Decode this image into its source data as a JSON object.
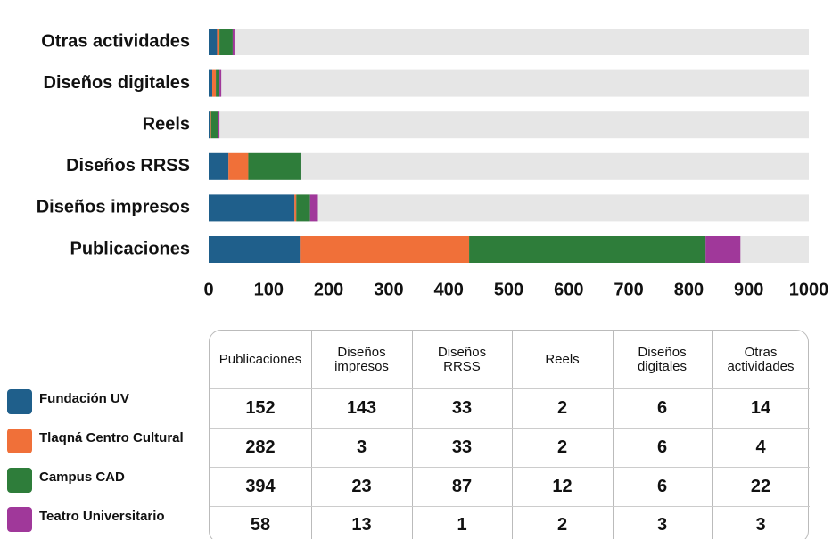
{
  "chart_data": {
    "type": "stacked_barh",
    "categories": [
      "Publicaciones",
      "Diseños impresos",
      "Diseños RRSS",
      "Reels",
      "Diseños digitales",
      "Otras actividades"
    ],
    "series": [
      {
        "name": "Fundación UV",
        "color": "#1f5f8b",
        "values": [
          152,
          143,
          33,
          2,
          6,
          14
        ]
      },
      {
        "name": "Tlaqná Centro Cultural",
        "color": "#f07039",
        "values": [
          282,
          3,
          33,
          2,
          6,
          4
        ]
      },
      {
        "name": "Campus CAD",
        "color": "#2e7d3a",
        "values": [
          394,
          23,
          87,
          12,
          6,
          22
        ]
      },
      {
        "name": "Teatro Universitario",
        "color": "#a0389a",
        "values": [
          58,
          13,
          1,
          2,
          3,
          3
        ]
      }
    ],
    "xlim": [
      0,
      1000
    ],
    "xticks": [
      0,
      100,
      200,
      300,
      400,
      500,
      600,
      700,
      800,
      900,
      1000
    ]
  }
}
